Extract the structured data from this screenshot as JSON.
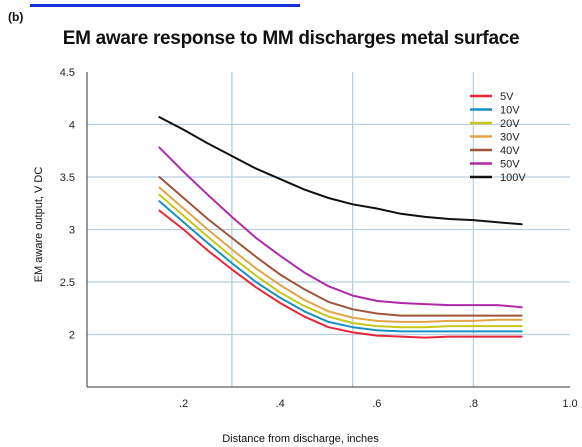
{
  "panel_label": "(b)",
  "chart_data": {
    "type": "line",
    "title": "EM aware response to MM discharges metal surface",
    "xlabel": "Distance from discharge, inches",
    "ylabel": "EM aware output, V DC",
    "xlim": [
      0,
      1.0
    ],
    "ylim": [
      1.5,
      4.5
    ],
    "x_ticks": [
      0.2,
      0.4,
      0.6,
      0.8,
      1.0
    ],
    "x_tick_labels": [
      ".2",
      ".4",
      ".6",
      ".8",
      "1.0"
    ],
    "y_ticks": [
      2,
      2.5,
      3,
      3.5,
      4,
      4.5
    ],
    "y_tick_labels": [
      "2",
      "2.5",
      "3",
      "3.5",
      "4",
      "4.5"
    ],
    "grid": true,
    "legend_position": "top-right",
    "x": [
      0.15,
      0.2,
      0.25,
      0.3,
      0.35,
      0.4,
      0.45,
      0.5,
      0.55,
      0.6,
      0.65,
      0.7,
      0.75,
      0.8,
      0.85,
      0.9
    ],
    "series": [
      {
        "name": "5V",
        "color": "#e8283a",
        "values": [
          3.18,
          3.0,
          2.8,
          2.62,
          2.45,
          2.3,
          2.17,
          2.07,
          2.02,
          1.99,
          1.98,
          1.97,
          1.98,
          1.98,
          1.98,
          1.98
        ]
      },
      {
        "name": "10V",
        "color": "#1791c4",
        "values": [
          3.27,
          3.07,
          2.87,
          2.68,
          2.5,
          2.35,
          2.22,
          2.12,
          2.07,
          2.04,
          2.03,
          2.03,
          2.03,
          2.03,
          2.03,
          2.03
        ]
      },
      {
        "name": "20V",
        "color": "#c9c51c",
        "values": [
          3.33,
          3.13,
          2.93,
          2.74,
          2.56,
          2.4,
          2.27,
          2.17,
          2.11,
          2.08,
          2.07,
          2.07,
          2.08,
          2.08,
          2.08,
          2.08
        ]
      },
      {
        "name": "30V",
        "color": "#e0a548",
        "values": [
          3.4,
          3.2,
          3.0,
          2.81,
          2.63,
          2.47,
          2.33,
          2.22,
          2.16,
          2.13,
          2.12,
          2.12,
          2.13,
          2.13,
          2.14,
          2.14
        ]
      },
      {
        "name": "40V",
        "color": "#a0553a",
        "values": [
          3.5,
          3.3,
          3.1,
          2.92,
          2.74,
          2.57,
          2.43,
          2.31,
          2.24,
          2.2,
          2.18,
          2.18,
          2.18,
          2.18,
          2.18,
          2.18
        ]
      },
      {
        "name": "50V",
        "color": "#b02aa8",
        "values": [
          3.78,
          3.55,
          3.33,
          3.12,
          2.92,
          2.75,
          2.59,
          2.46,
          2.37,
          2.32,
          2.3,
          2.29,
          2.28,
          2.28,
          2.28,
          2.26
        ]
      },
      {
        "name": "100V",
        "color": "#111111",
        "values": [
          4.07,
          3.95,
          3.82,
          3.7,
          3.58,
          3.48,
          3.38,
          3.3,
          3.24,
          3.2,
          3.15,
          3.12,
          3.1,
          3.09,
          3.07,
          3.05
        ]
      }
    ]
  }
}
